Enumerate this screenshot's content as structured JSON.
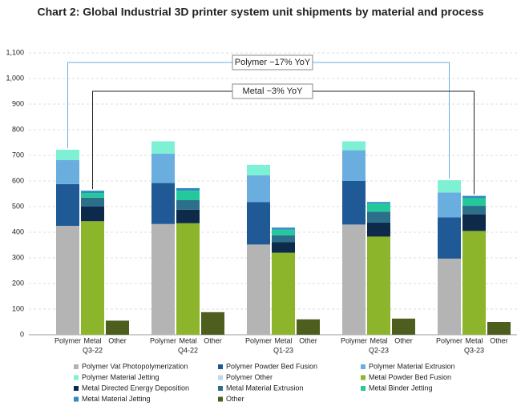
{
  "chart_data": {
    "type": "stacked-grouped-bar",
    "title": "Chart 2: Global Industrial 3D printer system unit shipments by material and process",
    "groups": [
      "Q3-22",
      "Q4-22",
      "Q1-23",
      "Q2-23",
      "Q3-23"
    ],
    "bars": [
      "Polymer",
      "Metal",
      "Other"
    ],
    "ylim": [
      0,
      1100
    ],
    "yticks": [
      0,
      100,
      200,
      300,
      400,
      500,
      600,
      700,
      800,
      900,
      {
        "value": 1000,
        "label": "1,000"
      },
      {
        "value": 1100,
        "label": "1,100"
      }
    ],
    "grid": true,
    "series": [
      {
        "name": "Polymer Vat Photopolymerization",
        "stack": "Polymer",
        "color": "#b4b4b4",
        "values": [
          425,
          432,
          352,
          430,
          297
        ]
      },
      {
        "name": "Polymer Powder Bed Fusion",
        "stack": "Polymer",
        "color": "#1f5a96",
        "values": [
          163,
          160,
          166,
          170,
          161
        ]
      },
      {
        "name": "Polymer Material Extrusion",
        "stack": "Polymer",
        "color": "#6aaee0",
        "values": [
          94,
          115,
          104,
          120,
          97
        ]
      },
      {
        "name": "Polymer Material Jetting",
        "stack": "Polymer",
        "color": "#7ef0d4",
        "values": [
          40,
          48,
          41,
          35,
          48
        ]
      },
      {
        "name": "Polymer Other",
        "stack": "Polymer",
        "color": "#b9d9ef",
        "values": [
          0,
          0,
          0,
          0,
          0
        ]
      },
      {
        "name": "Metal Powder Bed Fusion",
        "stack": "Metal",
        "color": "#8db52c",
        "values": [
          443,
          435,
          320,
          383,
          405
        ]
      },
      {
        "name": "Metal Directed Energy Deposition",
        "stack": "Metal",
        "color": "#0d2a4a",
        "values": [
          57,
          53,
          42,
          55,
          65
        ]
      },
      {
        "name": "Metal Material Extrusion",
        "stack": "Metal",
        "color": "#2c6f8a",
        "values": [
          35,
          37,
          26,
          42,
          33
        ]
      },
      {
        "name": "Metal Binder Jetting",
        "stack": "Metal",
        "color": "#23c99a",
        "values": [
          18,
          37,
          22,
          32,
          30
        ]
      },
      {
        "name": "Metal Material Jetting",
        "stack": "Metal",
        "color": "#2e8bc2",
        "values": [
          9,
          10,
          8,
          6,
          9
        ]
      },
      {
        "name": "Other",
        "stack": "Other",
        "color": "#4d5e1e",
        "values": [
          55,
          88,
          60,
          63,
          50
        ]
      }
    ],
    "annotations": [
      "Polymer −17% YoY",
      "Metal −3% YoY"
    ]
  }
}
